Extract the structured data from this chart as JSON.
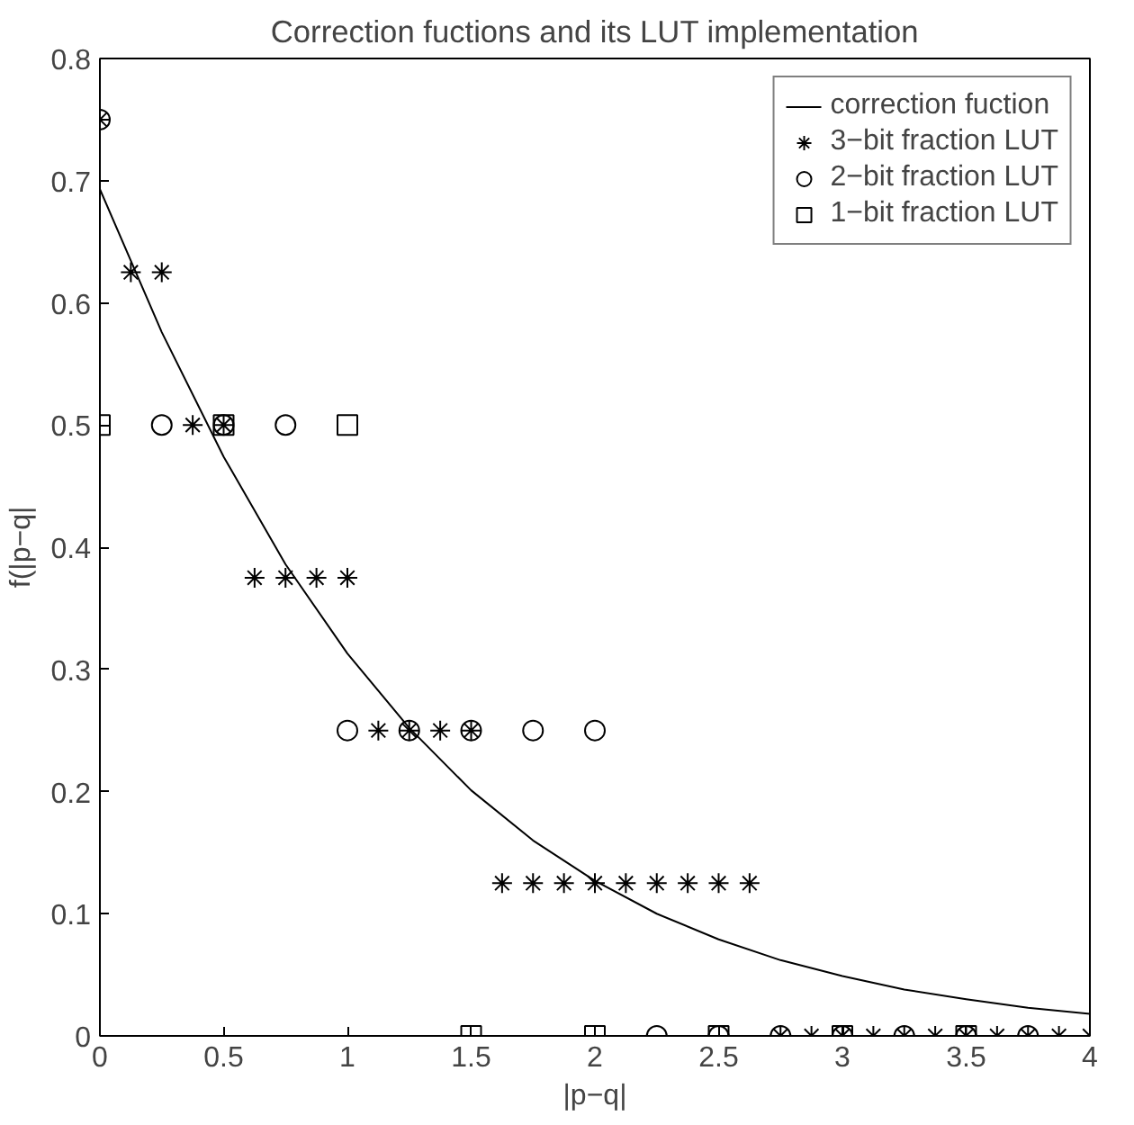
{
  "chart_data": {
    "type": "scatter",
    "title": "Correction fuctions and its LUT implementation",
    "xlabel": "|p−q|",
    "ylabel": "f(|p−q|",
    "xlim": [
      0,
      4
    ],
    "ylim": [
      0,
      0.8
    ],
    "xticks": [
      0,
      0.5,
      1,
      1.5,
      2,
      2.5,
      3,
      3.5,
      4
    ],
    "yticks": [
      0,
      0.1,
      0.2,
      0.3,
      0.4,
      0.5,
      0.6,
      0.7,
      0.8
    ],
    "grid": false,
    "legend": "top right",
    "series": [
      {
        "name": "correction fuction",
        "type": "line",
        "color": "#000000",
        "marker": "none",
        "line_style": "solid",
        "x": [
          0,
          0.25,
          0.5,
          0.75,
          1,
          1.25,
          1.5,
          1.75,
          2,
          2.25,
          2.5,
          2.75,
          3,
          3.25,
          3.5,
          3.75,
          4
        ],
        "values": [
          0.693,
          0.576,
          0.474,
          0.386,
          0.313,
          0.252,
          0.201,
          0.16,
          0.127,
          0.1,
          0.079,
          0.062,
          0.049,
          0.038,
          0.03,
          0.023,
          0.018
        ]
      },
      {
        "name": "3−bit fraction LUT",
        "color": "#000000",
        "marker": "cross",
        "x": [
          0,
          0.125,
          0.25,
          0.375,
          0.5,
          0.625,
          0.75,
          0.875,
          1,
          1.125,
          1.25,
          1.375,
          1.5,
          1.625,
          1.75,
          1.875,
          2,
          2.125,
          2.25,
          2.375,
          2.5,
          2.625,
          2.75,
          2.875,
          3,
          3.125,
          3.25,
          3.375,
          3.5,
          3.625,
          3.75,
          3.875,
          4
        ],
        "values": [
          0.75,
          0.625,
          0.625,
          0.5,
          0.5,
          0.375,
          0.375,
          0.375,
          0.375,
          0.25,
          0.25,
          0.25,
          0.25,
          0.125,
          0.125,
          0.125,
          0.125,
          0.125,
          0.125,
          0.125,
          0.125,
          0.125,
          0,
          0,
          0,
          0,
          0,
          0,
          0,
          0,
          0,
          0,
          0
        ]
      },
      {
        "name": "2−bit fraction LUT",
        "color": "#000000",
        "marker": "circle",
        "x": [
          0,
          0.25,
          0.5,
          0.75,
          1,
          1.25,
          1.5,
          1.75,
          2,
          2.25,
          2.5,
          2.75,
          3,
          3.25,
          3.5,
          3.75
        ],
        "values": [
          0.75,
          0.5,
          0.5,
          0.5,
          0.25,
          0.25,
          0.25,
          0.25,
          0.25,
          0,
          0,
          0,
          0,
          0,
          0,
          0
        ]
      },
      {
        "name": "1−bit fraction LUT",
        "color": "#000000",
        "marker": "square",
        "x": [
          0,
          0.5,
          1,
          1.5,
          2,
          2.5,
          3,
          3.5
        ],
        "values": [
          0.5,
          0.5,
          0.5,
          0,
          0,
          0,
          0,
          0
        ]
      }
    ]
  }
}
